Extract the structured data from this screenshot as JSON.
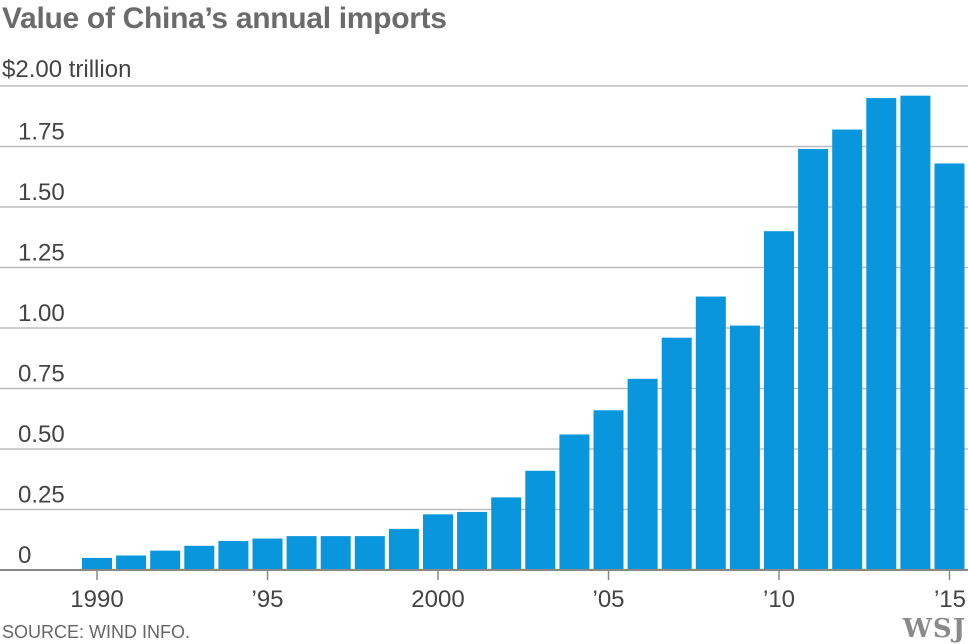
{
  "title": "Value of China’s annual imports",
  "unit_label": "$2.00 trillion",
  "source": "SOURCE: WIND INFO.",
  "logo": "WSJ",
  "colors": {
    "bar": "#0a96dc",
    "grid": "#bdbdbd",
    "axis": "#888888"
  },
  "chart_data": {
    "type": "bar",
    "title": "Value of China’s annual imports",
    "ylabel": "$2.00 trillion",
    "xlabel": "",
    "ylim": [
      0,
      2.0
    ],
    "yticks": [
      0,
      0.25,
      0.5,
      0.75,
      1.0,
      1.25,
      1.5,
      1.75,
      2.0
    ],
    "ytick_labels": [
      "0",
      "0.25",
      "0.50",
      "0.75",
      "1.00",
      "1.25",
      "1.50",
      "1.75",
      "$2.00 trillion"
    ],
    "xtick_labels": [
      {
        "year": 1990,
        "label": "1990"
      },
      {
        "year": 1995,
        "label": "’95"
      },
      {
        "year": 2000,
        "label": "2000"
      },
      {
        "year": 2005,
        "label": "’05"
      },
      {
        "year": 2010,
        "label": "’10"
      },
      {
        "year": 2015,
        "label": "’15"
      }
    ],
    "categories": [
      1990,
      1991,
      1992,
      1993,
      1994,
      1995,
      1996,
      1997,
      1998,
      1999,
      2000,
      2001,
      2002,
      2003,
      2004,
      2005,
      2006,
      2007,
      2008,
      2009,
      2010,
      2011,
      2012,
      2013,
      2014,
      2015
    ],
    "values": [
      0.05,
      0.06,
      0.08,
      0.1,
      0.12,
      0.13,
      0.14,
      0.14,
      0.14,
      0.17,
      0.23,
      0.24,
      0.3,
      0.41,
      0.56,
      0.66,
      0.79,
      0.96,
      1.13,
      1.01,
      1.4,
      1.74,
      1.82,
      1.95,
      1.96,
      1.68
    ],
    "grid": true
  }
}
